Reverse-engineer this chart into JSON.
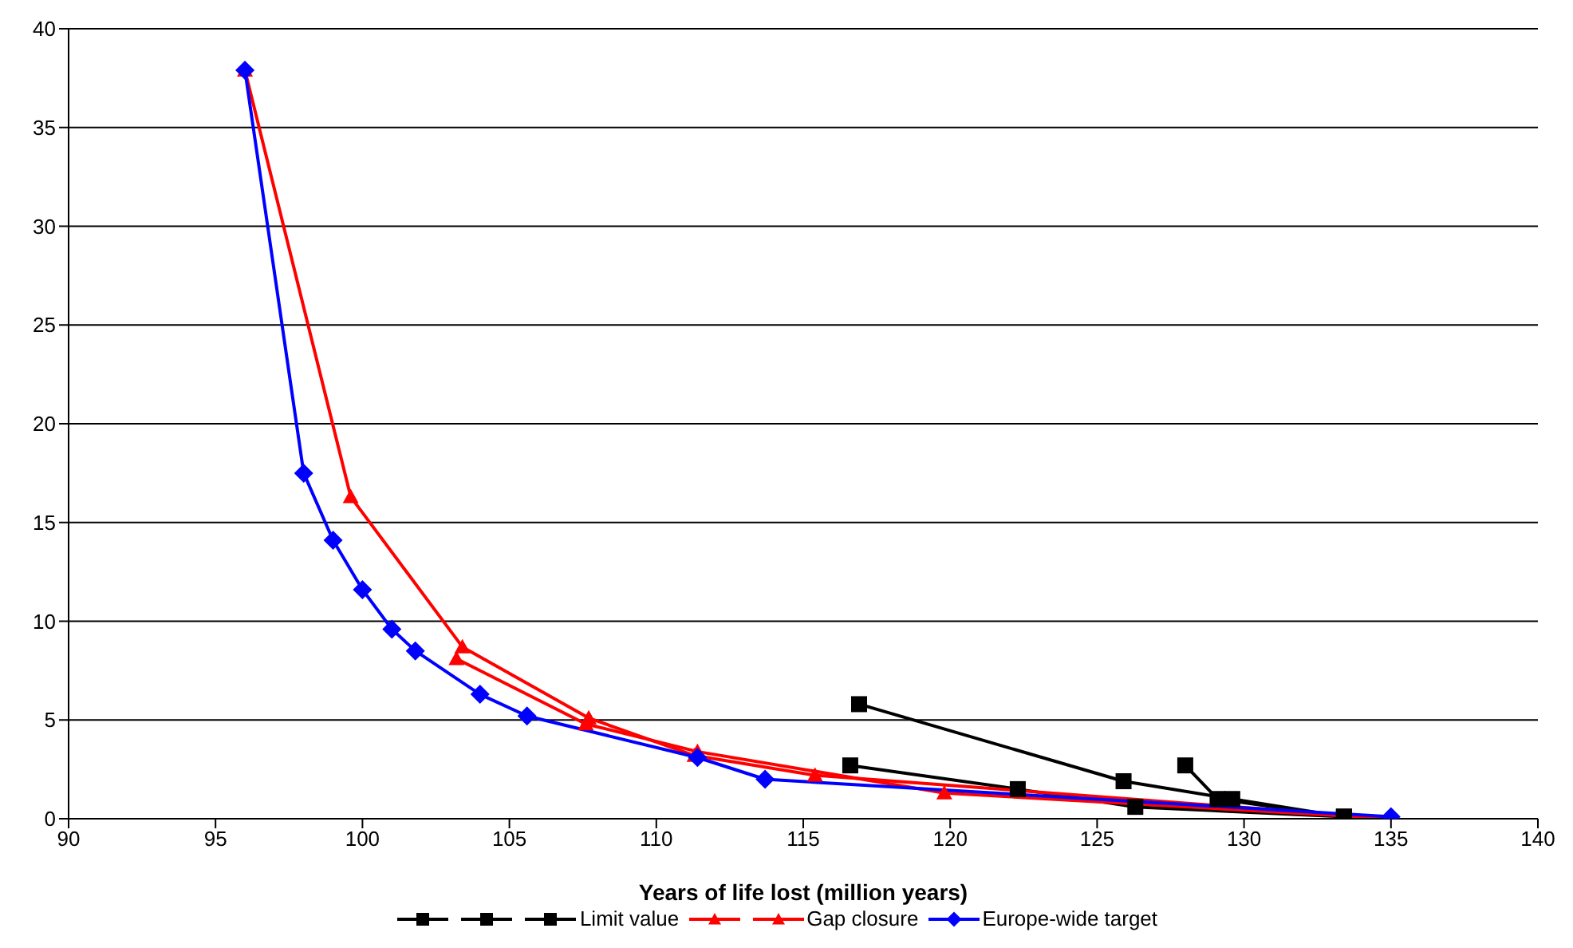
{
  "chart_data": {
    "type": "line",
    "xlabel": "Years of life lost (million years)",
    "xlim": [
      90,
      140
    ],
    "xticks": [
      90,
      95,
      100,
      105,
      110,
      115,
      120,
      125,
      130,
      135,
      140
    ],
    "ylim": [
      0,
      40
    ],
    "yticks": [
      0,
      5,
      10,
      15,
      20,
      25,
      30,
      35,
      40
    ],
    "grid": "y",
    "legend": "bottom",
    "series": [
      {
        "color": "#000000",
        "marker": "square",
        "x": [
          116.9,
          125.9,
          129.6,
          133.4
        ],
        "values": [
          5.8,
          1.9,
          1.0,
          0.1
        ]
      },
      {
        "color": "#000000",
        "marker": "square",
        "x": [
          116.6,
          122.3,
          126.3,
          133.4
        ],
        "values": [
          2.7,
          1.5,
          0.6,
          0.1
        ]
      },
      {
        "name": "Limit value",
        "color": "#000000",
        "marker": "square",
        "x": [
          128.0,
          129.1,
          133.4
        ],
        "values": [
          2.7,
          1.0,
          0.1
        ]
      },
      {
        "color": "#ff0000",
        "marker": "triangle",
        "x": [
          103.2,
          107.6,
          111.4,
          119.8,
          135.1
        ],
        "values": [
          8.1,
          4.8,
          3.4,
          1.3,
          0
        ]
      },
      {
        "name": "Gap closure",
        "color": "#ff0000",
        "marker": "triangle",
        "x": [
          96.0,
          99.6,
          103.4,
          107.7,
          111.3,
          115.4,
          135.1
        ],
        "values": [
          37.9,
          16.3,
          8.7,
          5.1,
          3.2,
          2.2,
          0
        ]
      },
      {
        "name": "Europe-wide target",
        "color": "#0000ff",
        "marker": "diamond",
        "x": [
          96.0,
          98.0,
          99.0,
          100.0,
          101.0,
          101.8,
          104.0,
          105.6,
          111.4,
          113.7,
          135.0
        ],
        "values": [
          37.9,
          17.5,
          14.1,
          11.6,
          9.6,
          8.5,
          6.3,
          5.2,
          3.1,
          2.0,
          0.1
        ]
      }
    ]
  }
}
